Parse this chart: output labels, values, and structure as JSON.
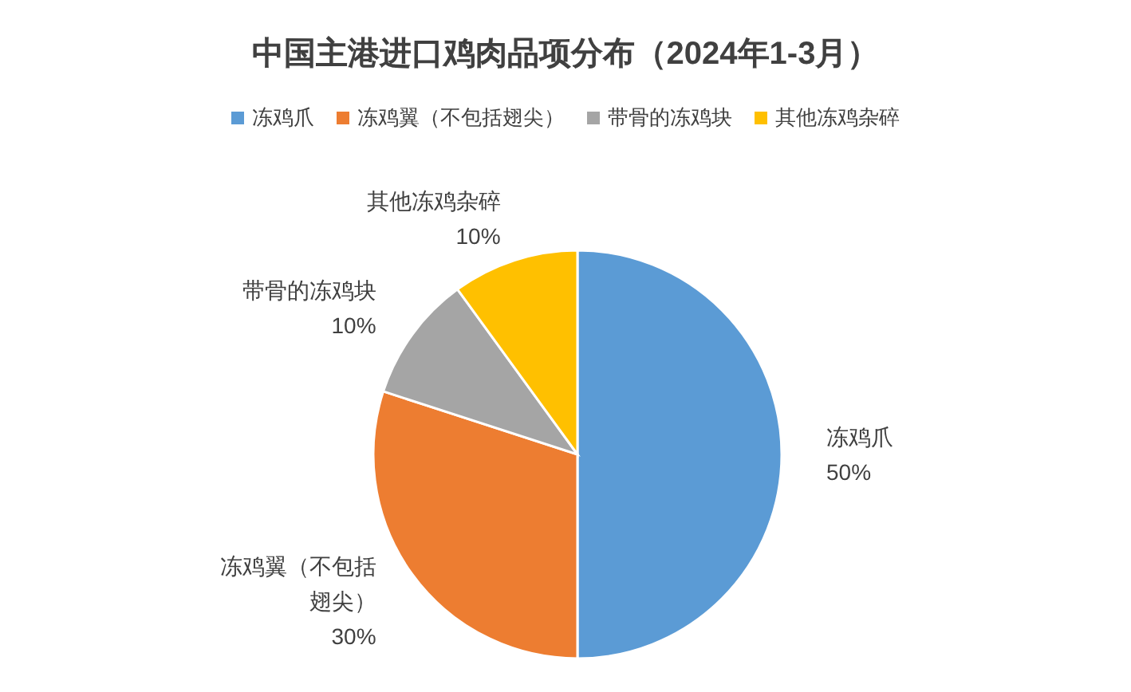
{
  "chart_data": {
    "type": "pie",
    "title": "中国主港进口鸡肉品项分布（2024年1-3月）",
    "categories": [
      "冻鸡爪",
      "冻鸡翼（不包括翅尖）",
      "带骨的冻鸡块",
      "其他冻鸡杂碎"
    ],
    "values": [
      50,
      30,
      10,
      10
    ],
    "value_labels": [
      "50%",
      "30%",
      "10%",
      "10%"
    ],
    "colors": [
      "#5b9bd5",
      "#ed7d31",
      "#a5a5a5",
      "#ffc000"
    ],
    "legend": "top"
  }
}
